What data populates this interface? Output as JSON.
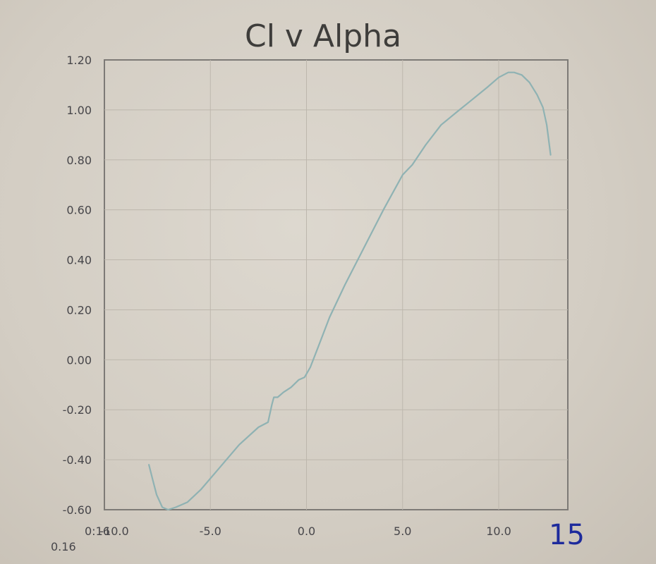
{
  "chart_data": {
    "type": "line",
    "title": "Cl v Alpha",
    "xlabel": "",
    "ylabel": "",
    "xlim": [
      -10,
      14
    ],
    "ylim": [
      -0.6,
      1.2
    ],
    "grid": true,
    "legend": "none",
    "x_ticks": [
      "-10.0",
      "-5.0",
      "0.0",
      "5.0",
      "10.0"
    ],
    "x_tick_values": [
      -10,
      -5,
      0,
      5,
      10
    ],
    "y_ticks": [
      "1.20",
      "1.00",
      "0.80",
      "0.60",
      "0.40",
      "0.20",
      "0.00",
      "-0.20",
      "-0.40",
      "-0.60"
    ],
    "y_tick_values": [
      1.2,
      1.0,
      0.8,
      0.6,
      0.4,
      0.2,
      0.0,
      -0.2,
      -0.4,
      -0.6
    ],
    "line_color": "#8fb2b3",
    "series": [
      {
        "x": [
          -8.2,
          -8.0,
          -7.8,
          -7.5,
          -7.2,
          -6.8,
          -6.2,
          -5.5,
          -4.5,
          -3.5,
          -2.5,
          -2.0,
          -1.8,
          -1.7,
          -1.5,
          -1.2,
          -0.8,
          -0.4,
          -0.1,
          0.2,
          0.6,
          1.2,
          2.0,
          3.0,
          4.0,
          5.0,
          5.5,
          6.2,
          7.0,
          7.8,
          8.6,
          9.4,
          10.0,
          10.5,
          10.8,
          11.2,
          11.6,
          12.0,
          12.3,
          12.5,
          12.7
        ],
        "y": [
          -0.42,
          -0.48,
          -0.54,
          -0.59,
          -0.6,
          -0.59,
          -0.57,
          -0.52,
          -0.43,
          -0.34,
          -0.27,
          -0.25,
          -0.18,
          -0.15,
          -0.15,
          -0.13,
          -0.11,
          -0.08,
          -0.07,
          -0.03,
          0.05,
          0.17,
          0.3,
          0.45,
          0.6,
          0.74,
          0.78,
          0.86,
          0.94,
          0.99,
          1.04,
          1.09,
          1.13,
          1.15,
          1.15,
          1.14,
          1.11,
          1.06,
          1.01,
          0.94,
          0.82
        ]
      }
    ],
    "stray_labels": [
      "0:16",
      "0.16"
    ],
    "handwritten_note": "15"
  }
}
